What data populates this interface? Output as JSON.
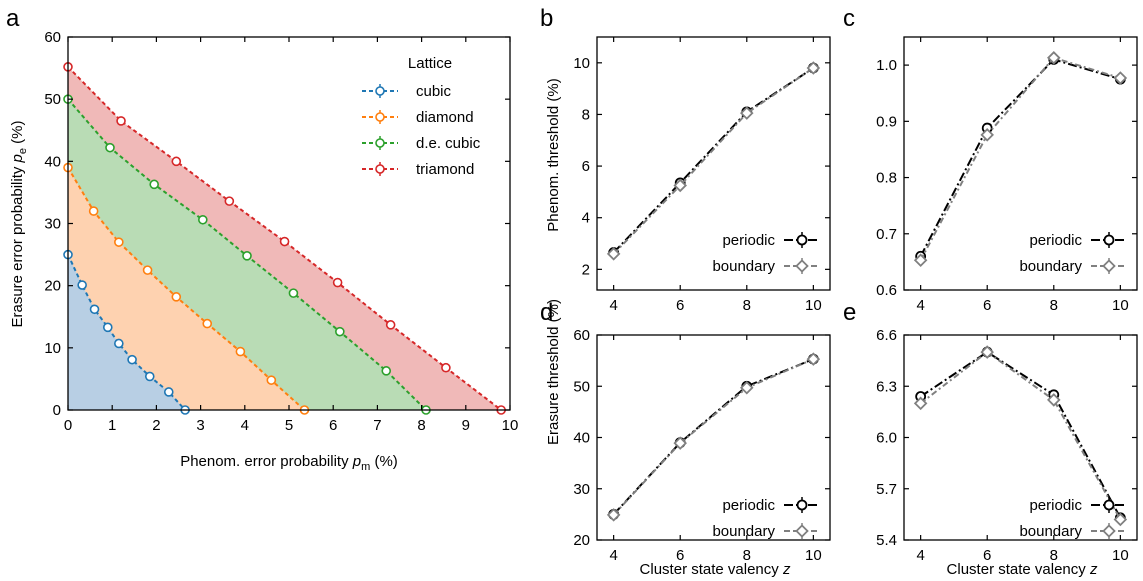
{
  "colors": {
    "cubic": "#1f77b4",
    "diamond": "#ff7f0e",
    "de_cubic": "#2ca02c",
    "triamond": "#d62728",
    "fill_cubic": "#b8cfe4",
    "fill_diamond": "#fed2b0",
    "fill_de_cubic": "#b9dcb5",
    "fill_triamond": "#f0b9b8",
    "periodic": "#000000",
    "boundary": "#808080"
  },
  "chart_data": [
    {
      "panel": "a",
      "type": "line",
      "xlabel": "Phenom. error probability p_m (%)",
      "ylabel": "Erasure error probability p_e (%)",
      "xlim": [
        0,
        10
      ],
      "ylim": [
        0,
        60
      ],
      "xticks": [
        "0",
        "1",
        "2",
        "3",
        "4",
        "5",
        "6",
        "7",
        "8",
        "9",
        "10"
      ],
      "yticks": [
        "0",
        "10",
        "20",
        "30",
        "40",
        "50",
        "60"
      ],
      "legend_title": "Lattice",
      "legend_position": "top-right",
      "series": [
        {
          "name": "cubic",
          "x": [
            0,
            0.32,
            0.6,
            0.9,
            1.15,
            1.45,
            1.85,
            2.28,
            2.65
          ],
          "y": [
            25,
            20.1,
            16.2,
            13.3,
            10.7,
            8.1,
            5.4,
            2.9,
            0
          ]
        },
        {
          "name": "diamond",
          "x": [
            0,
            0.58,
            1.15,
            1.8,
            2.45,
            3.15,
            3.9,
            4.6,
            5.35
          ],
          "y": [
            39,
            32,
            27,
            22.5,
            18.2,
            13.9,
            9.4,
            4.8,
            0
          ]
        },
        {
          "name": "d.e. cubic",
          "x": [
            0,
            0.95,
            1.95,
            3.05,
            4.05,
            5.1,
            6.15,
            7.2,
            8.1
          ],
          "y": [
            50,
            42.2,
            36.3,
            30.6,
            24.8,
            18.8,
            12.6,
            6.3,
            0
          ]
        },
        {
          "name": "triamond",
          "x": [
            0,
            1.2,
            2.45,
            3.65,
            4.9,
            6.1,
            7.3,
            8.55,
            9.8
          ],
          "y": [
            55.2,
            46.5,
            40,
            33.6,
            27.1,
            20.5,
            13.7,
            6.8,
            0
          ]
        }
      ]
    },
    {
      "panel": "b",
      "type": "line",
      "xlabel": "",
      "ylabel": "Phenom. threshold (%)",
      "xlim": [
        3.5,
        10.5
      ],
      "ylim": [
        1.2,
        11
      ],
      "xticks": [
        "4",
        "6",
        "8",
        "10"
      ],
      "yticks": [
        "2",
        "4",
        "6",
        "8",
        "10"
      ],
      "legend_position": "bottom-right",
      "series": [
        {
          "name": "periodic",
          "x": [
            4,
            6,
            8,
            10
          ],
          "y": [
            2.65,
            5.35,
            8.1,
            9.8
          ]
        },
        {
          "name": "boundary",
          "x": [
            4,
            6,
            8,
            10
          ],
          "y": [
            2.6,
            5.25,
            8.05,
            9.8
          ]
        }
      ]
    },
    {
      "panel": "c",
      "type": "line",
      "xlabel": "",
      "ylabel": "",
      "xlim": [
        3.5,
        10.5
      ],
      "ylim": [
        0.6,
        1.05
      ],
      "xticks": [
        "4",
        "6",
        "8",
        "10"
      ],
      "yticks": [
        "0.6",
        "0.7",
        "0.8",
        "0.9",
        "1.0"
      ],
      "legend_position": "bottom-right",
      "series": [
        {
          "name": "periodic",
          "x": [
            4,
            6,
            8,
            10
          ],
          "y": [
            0.66,
            0.888,
            1.01,
            0.975
          ]
        },
        {
          "name": "boundary",
          "x": [
            4,
            6,
            8,
            10
          ],
          "y": [
            0.653,
            0.876,
            1.013,
            0.977
          ]
        }
      ]
    },
    {
      "panel": "d",
      "type": "line",
      "xlabel": "Cluster state valency z",
      "ylabel": "Erasure threshold (%)",
      "xlim": [
        3.5,
        10.5
      ],
      "ylim": [
        20,
        60
      ],
      "xticks": [
        "4",
        "6",
        "8",
        "10"
      ],
      "yticks": [
        "20",
        "30",
        "40",
        "50",
        "60"
      ],
      "legend_position": "bottom-right",
      "series": [
        {
          "name": "periodic",
          "x": [
            4,
            6,
            8,
            10
          ],
          "y": [
            25,
            39,
            50,
            55.3
          ]
        },
        {
          "name": "boundary",
          "x": [
            4,
            6,
            8,
            10
          ],
          "y": [
            24.9,
            38.9,
            49.7,
            55.3
          ]
        }
      ]
    },
    {
      "panel": "e",
      "type": "line",
      "xlabel": "Cluster state valency z",
      "ylabel": "",
      "xlim": [
        3.5,
        10.5
      ],
      "ylim": [
        5.4,
        6.6
      ],
      "xticks": [
        "4",
        "6",
        "8",
        "10"
      ],
      "yticks": [
        "5.4",
        "5.7",
        "6.0",
        "6.3",
        "6.6"
      ],
      "legend_position": "bottom-right",
      "series": [
        {
          "name": "periodic",
          "x": [
            4,
            6,
            8,
            10
          ],
          "y": [
            6.24,
            6.5,
            6.25,
            5.53
          ]
        },
        {
          "name": "boundary",
          "x": [
            4,
            6,
            8,
            10
          ],
          "y": [
            6.2,
            6.5,
            6.22,
            5.52
          ]
        }
      ]
    }
  ]
}
